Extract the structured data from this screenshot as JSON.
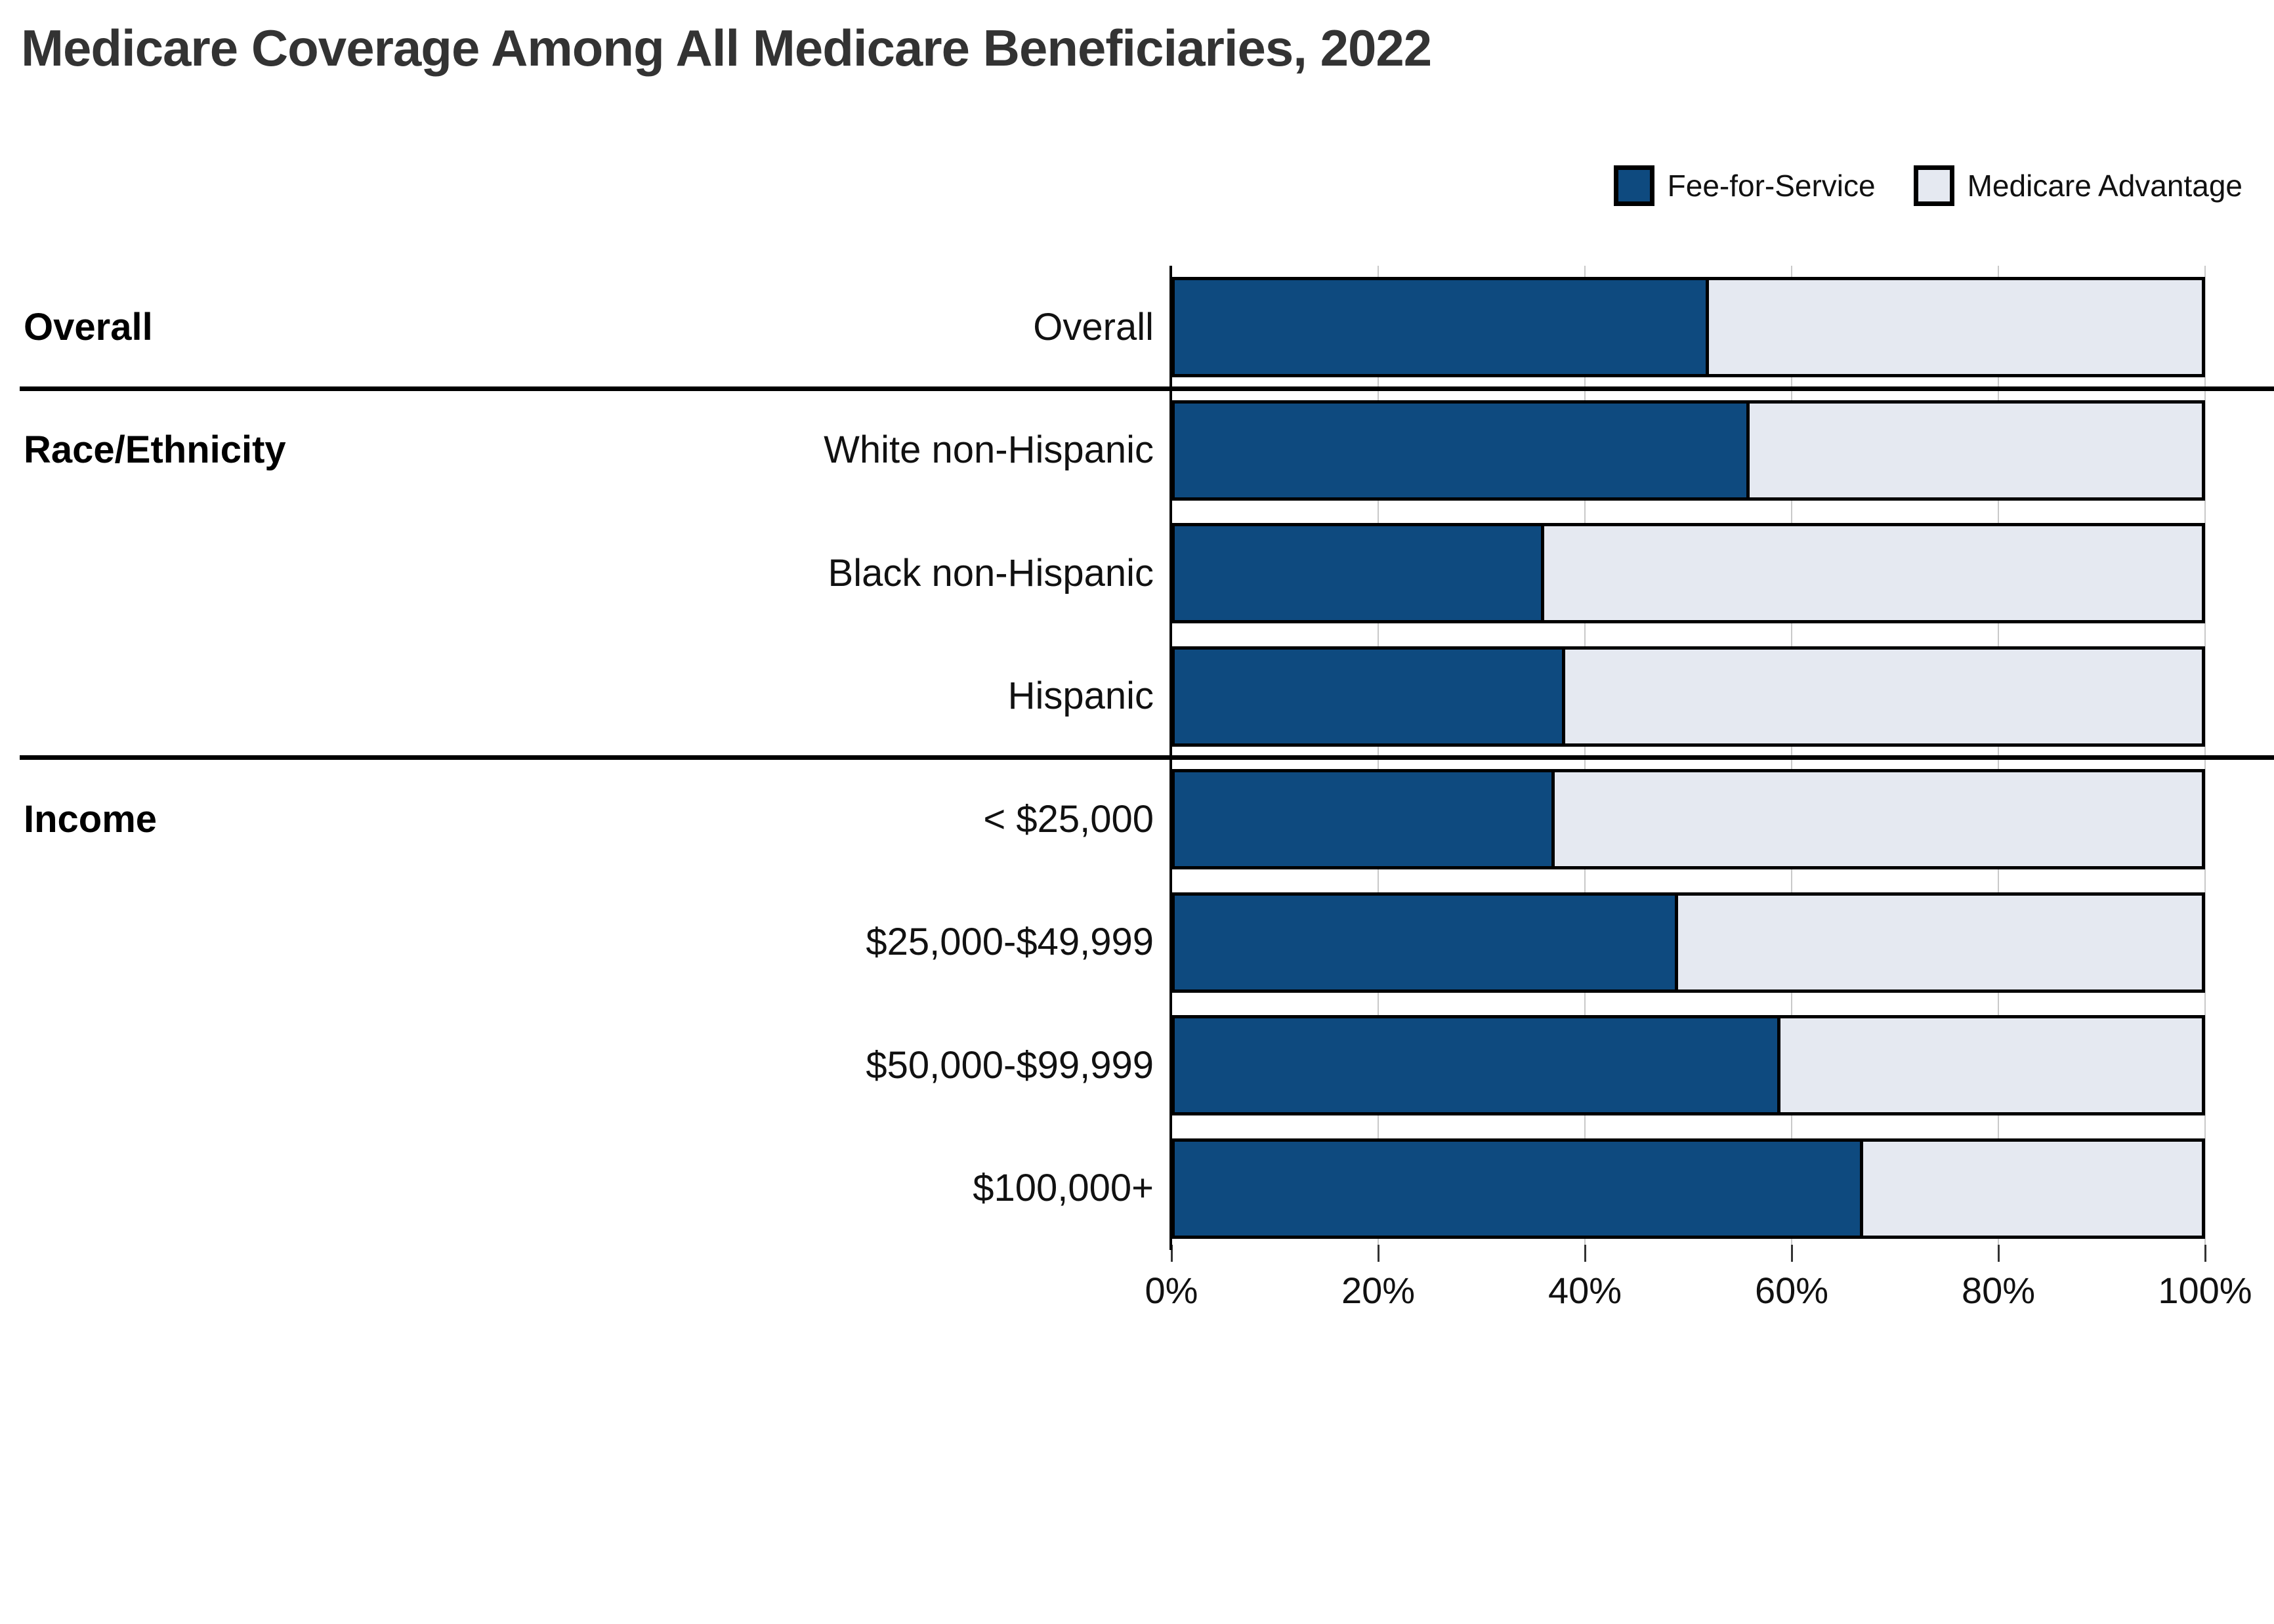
{
  "title": "Medicare Coverage Among All Medicare Beneficiaries, 2022",
  "legend": [
    {
      "label": "Fee-for-Service",
      "swatch": "fee-for-service-swatch",
      "color": "#0e4a7f"
    },
    {
      "label": "Medicare Advantage",
      "swatch": "medicare-advantage-swatch",
      "color": "#e5e9f1"
    }
  ],
  "chart_data": {
    "type": "bar",
    "orientation": "horizontal-stacked",
    "unit": "percent",
    "xlim": [
      0,
      100
    ],
    "grid": "vertical",
    "legend_position": "top-right",
    "x_ticks": {
      "values": [
        0,
        20,
        40,
        60,
        80,
        100
      ],
      "labels": [
        "0%",
        "20%",
        "40%",
        "60%",
        "80%",
        "100%"
      ]
    },
    "sections": [
      {
        "label": "Overall",
        "start_row": 0
      },
      {
        "label": "Race/Ethnicity",
        "start_row": 1
      },
      {
        "label": "Income",
        "start_row": 4
      }
    ],
    "divider_after_rows": [
      0,
      3
    ],
    "categories": [
      "Overall",
      "White non-Hispanic",
      "Black non-Hispanic",
      "Hispanic",
      "< $25,000",
      "$25,000-$49,999",
      "$50,000-$99,999",
      "$100,000+"
    ],
    "series": [
      {
        "name": "Fee-for-Service",
        "color": "#0e4a7f",
        "values": [
          52,
          56,
          36,
          38,
          37,
          49,
          59,
          67
        ]
      },
      {
        "name": "Medicare Advantage",
        "color": "#e5e9f1",
        "values": [
          48,
          44,
          64,
          62,
          63,
          51,
          41,
          33
        ]
      }
    ]
  },
  "colors": {
    "bar_border": "#000000",
    "gridline": "#c9c9c9",
    "axis": "#000000",
    "title_text": "#333333",
    "label_text": "#111111"
  }
}
